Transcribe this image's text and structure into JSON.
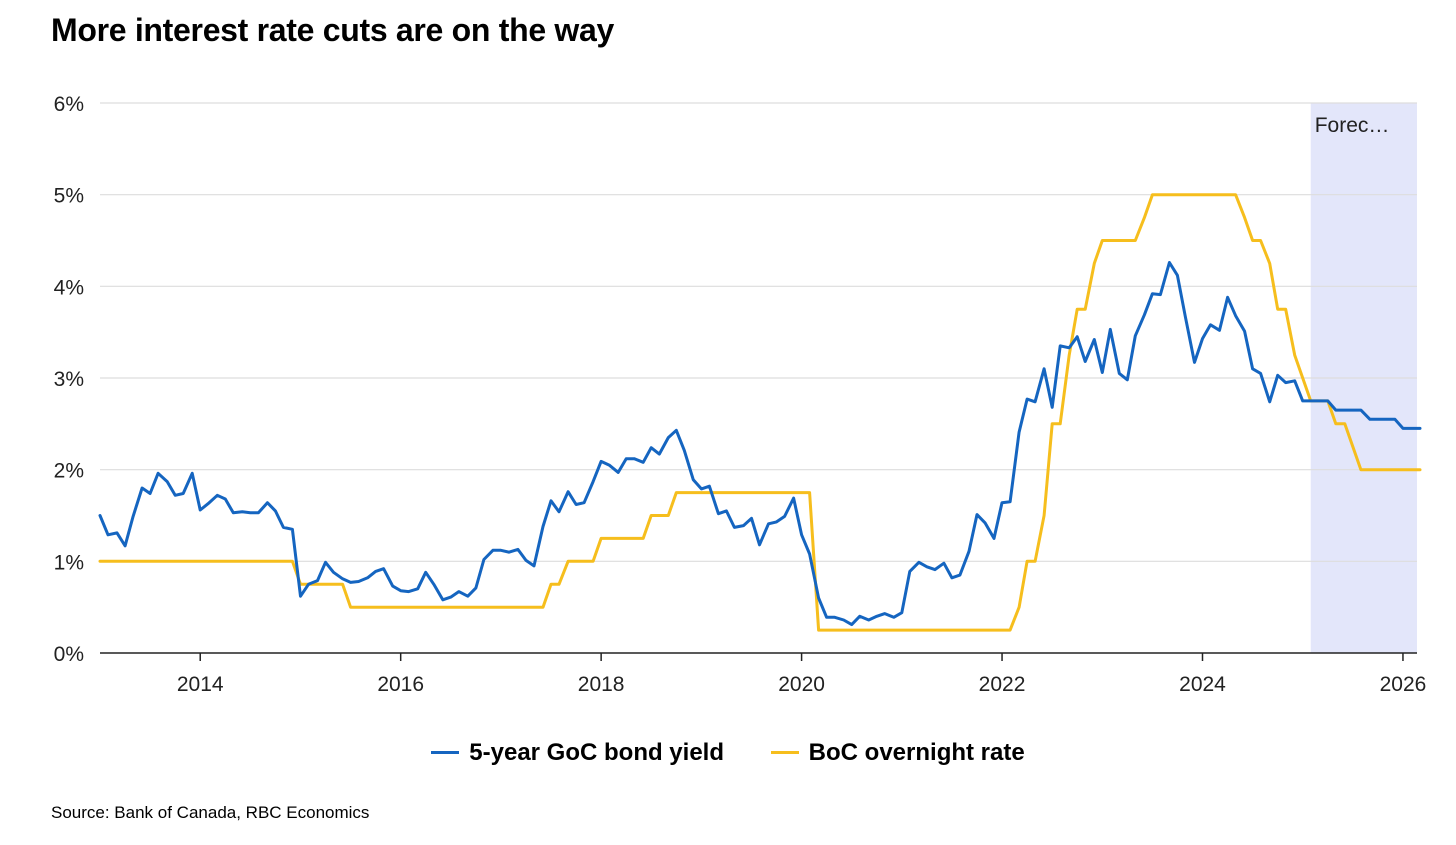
{
  "chart_data": {
    "type": "line",
    "title": "More interest rate cuts are on the way",
    "xlabel": "",
    "ylabel": "",
    "xlim": [
      2013.0,
      2026.2
    ],
    "ylim": [
      0,
      6
    ],
    "y_ticks": [
      "0%",
      "1%",
      "2%",
      "3%",
      "4%",
      "5%",
      "6%"
    ],
    "x_ticks": [
      "2014",
      "2016",
      "2018",
      "2020",
      "2022",
      "2024",
      "2026"
    ],
    "forecast_region": {
      "label": "Forec…",
      "x_start": 2025.08,
      "x_end": 2026.2
    },
    "grid": "horizontal",
    "legend_position": "bottom-center",
    "series": [
      {
        "name": "5-year GoC bond yield",
        "color": "#1565C0",
        "points": [
          [
            2013.0,
            1.5
          ],
          [
            2013.08,
            1.29
          ],
          [
            2013.17,
            1.31
          ],
          [
            2013.25,
            1.17
          ],
          [
            2013.33,
            1.49
          ],
          [
            2013.42,
            1.8
          ],
          [
            2013.5,
            1.74
          ],
          [
            2013.58,
            1.96
          ],
          [
            2013.67,
            1.87
          ],
          [
            2013.75,
            1.72
          ],
          [
            2013.83,
            1.74
          ],
          [
            2013.92,
            1.96
          ],
          [
            2014.0,
            1.56
          ],
          [
            2014.08,
            1.63
          ],
          [
            2014.17,
            1.72
          ],
          [
            2014.25,
            1.68
          ],
          [
            2014.33,
            1.53
          ],
          [
            2014.42,
            1.54
          ],
          [
            2014.5,
            1.53
          ],
          [
            2014.58,
            1.53
          ],
          [
            2014.67,
            1.64
          ],
          [
            2014.75,
            1.55
          ],
          [
            2014.83,
            1.37
          ],
          [
            2014.92,
            1.35
          ],
          [
            2015.0,
            0.62
          ],
          [
            2015.08,
            0.75
          ],
          [
            2015.17,
            0.79
          ],
          [
            2015.25,
            0.99
          ],
          [
            2015.33,
            0.88
          ],
          [
            2015.42,
            0.81
          ],
          [
            2015.5,
            0.77
          ],
          [
            2015.58,
            0.78
          ],
          [
            2015.67,
            0.82
          ],
          [
            2015.75,
            0.89
          ],
          [
            2015.83,
            0.92
          ],
          [
            2015.92,
            0.73
          ],
          [
            2016.0,
            0.68
          ],
          [
            2016.08,
            0.67
          ],
          [
            2016.17,
            0.7
          ],
          [
            2016.25,
            0.88
          ],
          [
            2016.33,
            0.75
          ],
          [
            2016.42,
            0.58
          ],
          [
            2016.5,
            0.61
          ],
          [
            2016.58,
            0.67
          ],
          [
            2016.67,
            0.62
          ],
          [
            2016.75,
            0.71
          ],
          [
            2016.83,
            1.02
          ],
          [
            2016.92,
            1.12
          ],
          [
            2017.0,
            1.12
          ],
          [
            2017.08,
            1.1
          ],
          [
            2017.17,
            1.13
          ],
          [
            2017.25,
            1.01
          ],
          [
            2017.33,
            0.95
          ],
          [
            2017.42,
            1.38
          ],
          [
            2017.5,
            1.66
          ],
          [
            2017.58,
            1.54
          ],
          [
            2017.67,
            1.76
          ],
          [
            2017.75,
            1.62
          ],
          [
            2017.83,
            1.64
          ],
          [
            2017.92,
            1.87
          ],
          [
            2018.0,
            2.09
          ],
          [
            2018.08,
            2.05
          ],
          [
            2018.17,
            1.97
          ],
          [
            2018.25,
            2.12
          ],
          [
            2018.33,
            2.12
          ],
          [
            2018.42,
            2.08
          ],
          [
            2018.5,
            2.24
          ],
          [
            2018.58,
            2.17
          ],
          [
            2018.67,
            2.35
          ],
          [
            2018.75,
            2.43
          ],
          [
            2018.83,
            2.21
          ],
          [
            2018.92,
            1.89
          ],
          [
            2019.0,
            1.79
          ],
          [
            2019.08,
            1.82
          ],
          [
            2019.17,
            1.52
          ],
          [
            2019.25,
            1.55
          ],
          [
            2019.33,
            1.37
          ],
          [
            2019.42,
            1.39
          ],
          [
            2019.5,
            1.47
          ],
          [
            2019.58,
            1.18
          ],
          [
            2019.67,
            1.41
          ],
          [
            2019.75,
            1.43
          ],
          [
            2019.83,
            1.49
          ],
          [
            2019.92,
            1.69
          ],
          [
            2020.0,
            1.29
          ],
          [
            2020.08,
            1.08
          ],
          [
            2020.17,
            0.6
          ],
          [
            2020.25,
            0.39
          ],
          [
            2020.33,
            0.39
          ],
          [
            2020.42,
            0.36
          ],
          [
            2020.5,
            0.31
          ],
          [
            2020.58,
            0.4
          ],
          [
            2020.67,
            0.36
          ],
          [
            2020.75,
            0.4
          ],
          [
            2020.83,
            0.43
          ],
          [
            2020.92,
            0.39
          ],
          [
            2021.0,
            0.44
          ],
          [
            2021.08,
            0.89
          ],
          [
            2021.17,
            0.99
          ],
          [
            2021.25,
            0.94
          ],
          [
            2021.33,
            0.91
          ],
          [
            2021.42,
            0.98
          ],
          [
            2021.5,
            0.82
          ],
          [
            2021.58,
            0.85
          ],
          [
            2021.67,
            1.11
          ],
          [
            2021.75,
            1.51
          ],
          [
            2021.83,
            1.42
          ],
          [
            2021.92,
            1.25
          ],
          [
            2022.0,
            1.64
          ],
          [
            2022.08,
            1.65
          ],
          [
            2022.17,
            2.41
          ],
          [
            2022.25,
            2.77
          ],
          [
            2022.33,
            2.74
          ],
          [
            2022.42,
            3.1
          ],
          [
            2022.5,
            2.68
          ],
          [
            2022.58,
            3.35
          ],
          [
            2022.67,
            3.33
          ],
          [
            2022.75,
            3.45
          ],
          [
            2022.83,
            3.18
          ],
          [
            2022.92,
            3.42
          ],
          [
            2023.0,
            3.06
          ],
          [
            2023.08,
            3.53
          ],
          [
            2023.17,
            3.05
          ],
          [
            2023.25,
            2.98
          ],
          [
            2023.33,
            3.46
          ],
          [
            2023.42,
            3.69
          ],
          [
            2023.5,
            3.92
          ],
          [
            2023.58,
            3.91
          ],
          [
            2023.67,
            4.26
          ],
          [
            2023.75,
            4.12
          ],
          [
            2023.83,
            3.66
          ],
          [
            2023.92,
            3.17
          ],
          [
            2024.0,
            3.43
          ],
          [
            2024.08,
            3.58
          ],
          [
            2024.17,
            3.52
          ],
          [
            2024.25,
            3.88
          ],
          [
            2024.33,
            3.68
          ],
          [
            2024.42,
            3.51
          ],
          [
            2024.5,
            3.1
          ],
          [
            2024.58,
            3.05
          ],
          [
            2024.67,
            2.74
          ],
          [
            2024.75,
            3.03
          ],
          [
            2024.83,
            2.95
          ],
          [
            2024.92,
            2.97
          ],
          [
            2025.0,
            2.75
          ],
          [
            2025.08,
            2.75
          ],
          [
            2025.25,
            2.75
          ],
          [
            2025.33,
            2.65
          ],
          [
            2025.58,
            2.65
          ],
          [
            2025.67,
            2.55
          ],
          [
            2025.92,
            2.55
          ],
          [
            2026.0,
            2.45
          ],
          [
            2026.17,
            2.45
          ]
        ]
      },
      {
        "name": "BoC overnight rate",
        "color": "#F6BE1D",
        "points": [
          [
            2013.0,
            1.0
          ],
          [
            2014.92,
            1.0
          ],
          [
            2015.0,
            0.75
          ],
          [
            2015.42,
            0.75
          ],
          [
            2015.5,
            0.5
          ],
          [
            2017.42,
            0.5
          ],
          [
            2017.5,
            0.75
          ],
          [
            2017.58,
            0.75
          ],
          [
            2017.67,
            1.0
          ],
          [
            2017.92,
            1.0
          ],
          [
            2018.0,
            1.25
          ],
          [
            2018.42,
            1.25
          ],
          [
            2018.5,
            1.5
          ],
          [
            2018.67,
            1.5
          ],
          [
            2018.75,
            1.75
          ],
          [
            2020.08,
            1.75
          ],
          [
            2020.17,
            0.25
          ],
          [
            2022.08,
            0.25
          ],
          [
            2022.17,
            0.5
          ],
          [
            2022.25,
            1.0
          ],
          [
            2022.33,
            1.0
          ],
          [
            2022.42,
            1.5
          ],
          [
            2022.5,
            2.5
          ],
          [
            2022.58,
            2.5
          ],
          [
            2022.67,
            3.25
          ],
          [
            2022.75,
            3.75
          ],
          [
            2022.83,
            3.75
          ],
          [
            2022.92,
            4.25
          ],
          [
            2023.0,
            4.5
          ],
          [
            2023.33,
            4.5
          ],
          [
            2023.42,
            4.75
          ],
          [
            2023.5,
            5.0
          ],
          [
            2024.33,
            5.0
          ],
          [
            2024.42,
            4.75
          ],
          [
            2024.5,
            4.5
          ],
          [
            2024.58,
            4.5
          ],
          [
            2024.67,
            4.25
          ],
          [
            2024.75,
            3.75
          ],
          [
            2024.83,
            3.75
          ],
          [
            2024.92,
            3.25
          ],
          [
            2025.0,
            3.0
          ],
          [
            2025.08,
            2.75
          ],
          [
            2025.25,
            2.75
          ],
          [
            2025.33,
            2.5
          ],
          [
            2025.42,
            2.5
          ],
          [
            2025.58,
            2.0
          ],
          [
            2026.17,
            2.0
          ]
        ]
      }
    ]
  },
  "source": "Source: Bank of Canada, RBC Economics"
}
